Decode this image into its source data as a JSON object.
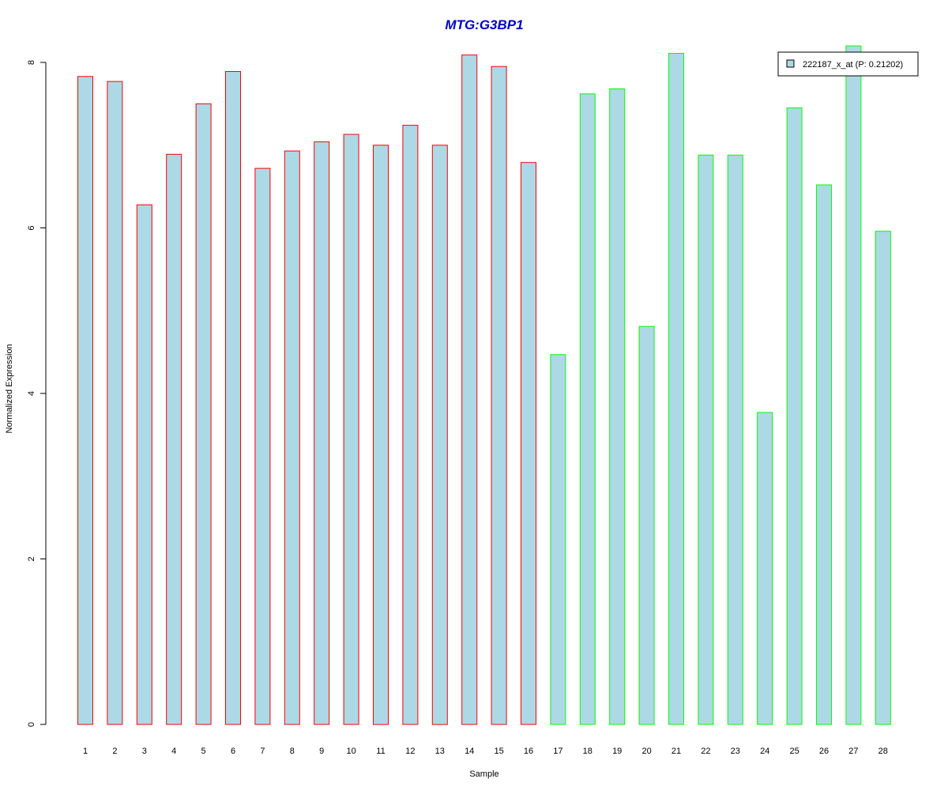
{
  "chart_data": {
    "type": "bar",
    "title": "MTG:G3BP1",
    "xlabel": "Sample",
    "ylabel": "Normalized Expression",
    "ylim": [
      0,
      8
    ],
    "yticks": [
      0,
      2,
      4,
      6,
      8
    ],
    "grid": false,
    "legend_position": "top-right",
    "categories": [
      "1",
      "2",
      "3",
      "4",
      "5",
      "6",
      "7",
      "8",
      "9",
      "10",
      "11",
      "12",
      "13",
      "14",
      "15",
      "16",
      "17",
      "18",
      "19",
      "20",
      "21",
      "22",
      "23",
      "24",
      "25",
      "26",
      "27",
      "28"
    ],
    "series": [
      {
        "name": "222187_x_at (P: 0.21202)",
        "fill_color": "#add8e6",
        "values": [
          7.83,
          7.77,
          6.28,
          6.89,
          7.5,
          7.89,
          6.72,
          6.93,
          7.04,
          7.13,
          7.0,
          7.24,
          7.0,
          8.09,
          7.95,
          6.79,
          4.47,
          7.62,
          7.68,
          4.81,
          8.11,
          6.88,
          6.88,
          3.77,
          7.45,
          6.52,
          8.2,
          5.96
        ],
        "edge_colors": [
          "#ff0000",
          "#ff0000",
          "#ff0000",
          "#ff0000",
          "#ff0000",
          "#ff0000",
          "#ff0000",
          "#ff0000",
          "#ff0000",
          "#ff0000",
          "#ff0000",
          "#ff0000",
          "#ff0000",
          "#ff0000",
          "#ff0000",
          "#ff0000",
          "#00ff00",
          "#00ff00",
          "#00ff00",
          "#00ff00",
          "#00ff00",
          "#00ff00",
          "#00ff00",
          "#00ff00",
          "#00ff00",
          "#00ff00",
          "#00ff00",
          "#00ff00"
        ]
      }
    ]
  }
}
